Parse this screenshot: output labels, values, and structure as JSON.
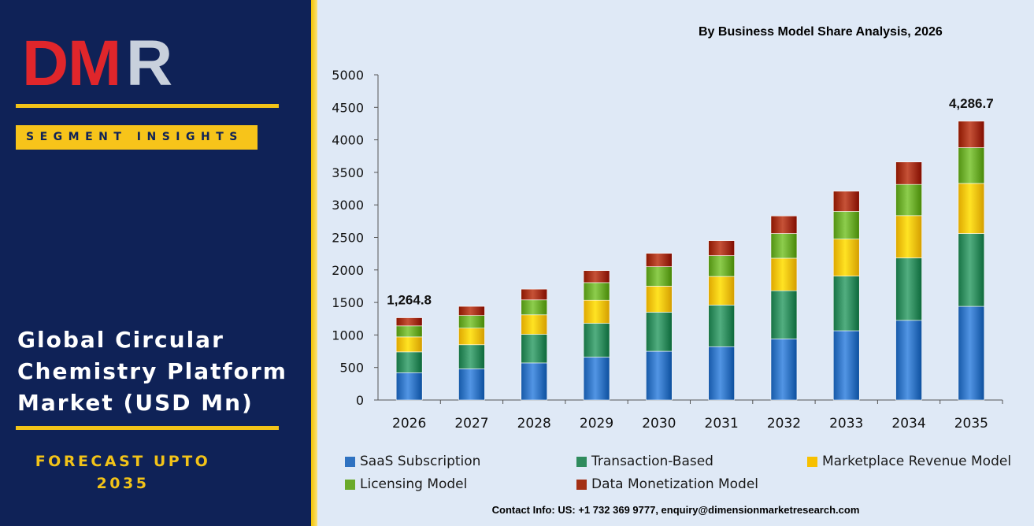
{
  "logo": {
    "text": "DMR",
    "colors": {
      "d_m": "#e0262b",
      "r": "#c8d0dc"
    }
  },
  "segment_badge": "SEGMENT INSIGHTS",
  "market_title_lines": [
    "Global Circular",
    "Chemistry Platform",
    "Market (USD Mn)"
  ],
  "forecast_lines": [
    "FORECAST UPTO",
    "2035"
  ],
  "contact": "Contact Info: US: +1 732 369 9777, enquiry@dimensionmarketresearch.com",
  "colors": {
    "panel_bg": "#0f2257",
    "gold": "#f2c318",
    "chart_bg": "#dfe9f6",
    "saas": "#2f72c1",
    "transaction": "#2f8b5d",
    "marketplace": "#f7c000",
    "licensing": "#6aaa2a",
    "data": "#a32f14"
  },
  "chart_data": {
    "type": "bar",
    "stacked": true,
    "title": "By Business Model Share Analysis, 2026",
    "categories": [
      "2026",
      "2027",
      "2028",
      "2029",
      "2030",
      "2031",
      "2032",
      "2033",
      "2034",
      "2035"
    ],
    "ylim": [
      0,
      5000
    ],
    "yticks": [
      0,
      500,
      1000,
      1500,
      2000,
      2500,
      3000,
      3500,
      4000,
      4500,
      5000
    ],
    "series": [
      {
        "name": "SaaS Subscription",
        "color_key": "saas",
        "values": [
          420,
          480,
          570,
          660,
          750,
          820,
          940,
          1065,
          1225,
          1440
        ]
      },
      {
        "name": "Transaction-Based",
        "color_key": "transaction",
        "values": [
          320,
          370,
          440,
          520,
          600,
          640,
          740,
          840,
          960,
          1120
        ]
      },
      {
        "name": "Marketplace Revenue Model",
        "color_key": "marketplace",
        "values": [
          230,
          255,
          300,
          355,
          400,
          440,
          500,
          570,
          650,
          770
        ]
      },
      {
        "name": "Licensing Model",
        "color_key": "licensing",
        "values": [
          170,
          195,
          230,
          270,
          300,
          320,
          380,
          425,
          480,
          550
        ]
      },
      {
        "name": "Data Monetization Model",
        "color_key": "data",
        "values": [
          124.8,
          140,
          165,
          185,
          205,
          230,
          270,
          310,
          345,
          406.7
        ]
      }
    ],
    "data_labels": [
      {
        "category": "2026",
        "text": "1,264.8"
      },
      {
        "category": "2035",
        "text": "4,286.7"
      }
    ],
    "legend_position": "bottom",
    "grid": false
  }
}
